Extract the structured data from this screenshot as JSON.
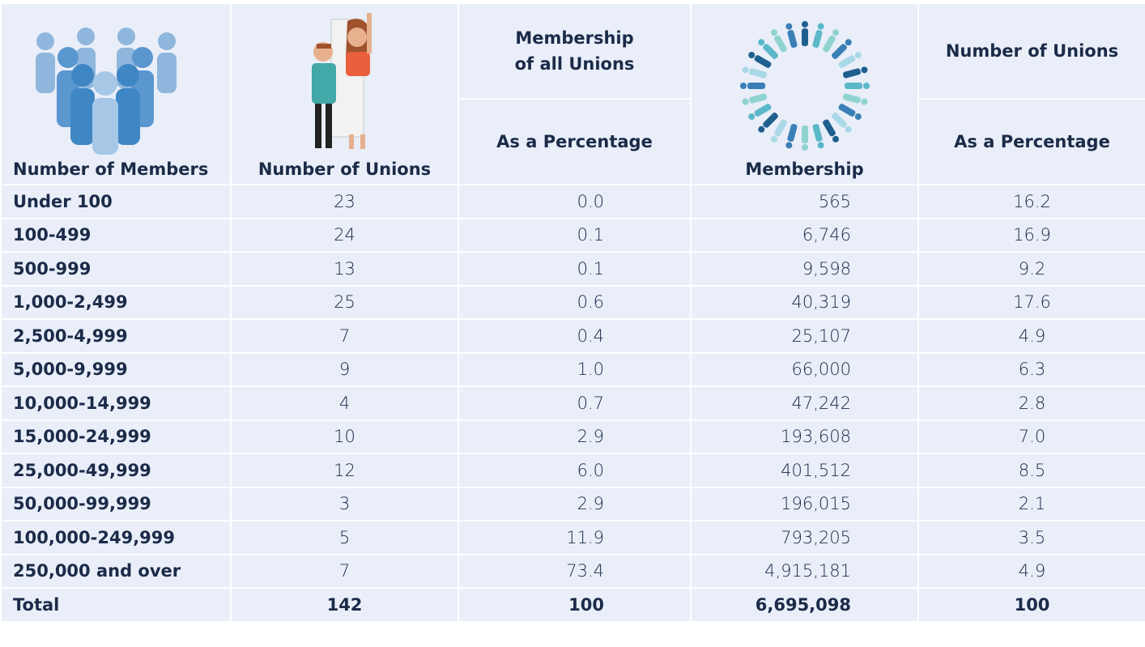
{
  "header": {
    "members": "Number of Members",
    "unions": "Number of Unions",
    "membership_group": "Membership of all Unions",
    "membership_pct": "As a Percentage",
    "membership": "Membership",
    "unions_group": "Number of Unions",
    "unions_pct": "As a Percentage"
  },
  "table": {
    "rows": [
      [
        "Under 100",
        "23",
        "0.0",
        "565",
        "16.2"
      ],
      [
        "100-499",
        "24",
        "0.1",
        "6,746",
        "16.9"
      ],
      [
        "500-999",
        "13",
        "0.1",
        "9,598",
        "9.2"
      ],
      [
        "1,000-2,499",
        "25",
        "0.6",
        "40,319",
        "17.6"
      ],
      [
        "2,500-4,999",
        "7",
        "0.4",
        "25,107",
        "4.9"
      ],
      [
        "5,000-9,999",
        "9",
        "1.0",
        "66,000",
        "6.3"
      ],
      [
        "10,000-14,999",
        "4",
        "0.7",
        "47,242",
        "2.8"
      ],
      [
        "15,000-24,999",
        "10",
        "2.9",
        "193,608",
        "7.0"
      ],
      [
        "25,000-49,999",
        "12",
        "6.0",
        "401,512",
        "8.5"
      ],
      [
        "50,000-99,999",
        "3",
        "2.9",
        "196,015",
        "2.1"
      ],
      [
        "100,000-249,999",
        "5",
        "11.9",
        "793,205",
        "3.5"
      ],
      [
        "250,000 and over",
        "7",
        "73.4",
        "4,915,181",
        "4.9"
      ],
      [
        "Total",
        "142",
        "100",
        "6,695,098",
        "100"
      ]
    ]
  }
}
